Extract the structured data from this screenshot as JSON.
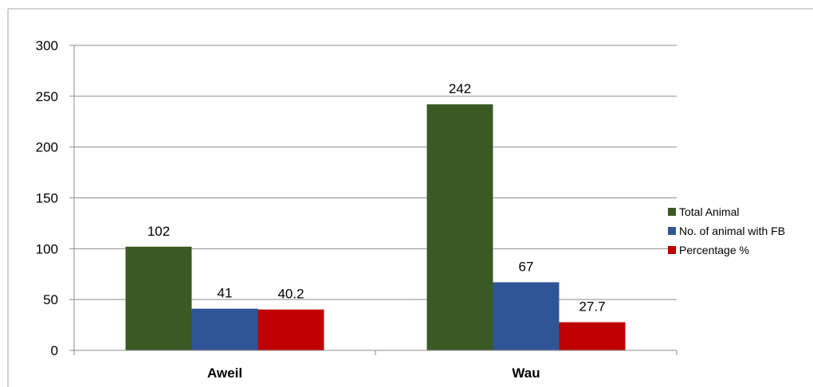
{
  "chart_data": {
    "type": "bar",
    "title": "",
    "xlabel": "",
    "ylabel": "",
    "categories": [
      "Aweil",
      "Wau"
    ],
    "ylim": [
      0,
      300
    ],
    "yticks": [
      0,
      50,
      100,
      150,
      200,
      250,
      300
    ],
    "grid": true,
    "legend_position": "right",
    "series": [
      {
        "name": "Total Animal",
        "values": [
          102,
          242
        ],
        "labels": [
          "102",
          "242"
        ],
        "color": "#3A5A25"
      },
      {
        "name": "No. of animal with FB",
        "values": [
          41,
          67
        ],
        "labels": [
          "41",
          "67"
        ],
        "color": "#2F5597"
      },
      {
        "name": "Percentage %",
        "values": [
          40.2,
          27.7
        ],
        "labels": [
          "40.2",
          "27.7"
        ],
        "color": "#C00000"
      }
    ]
  }
}
